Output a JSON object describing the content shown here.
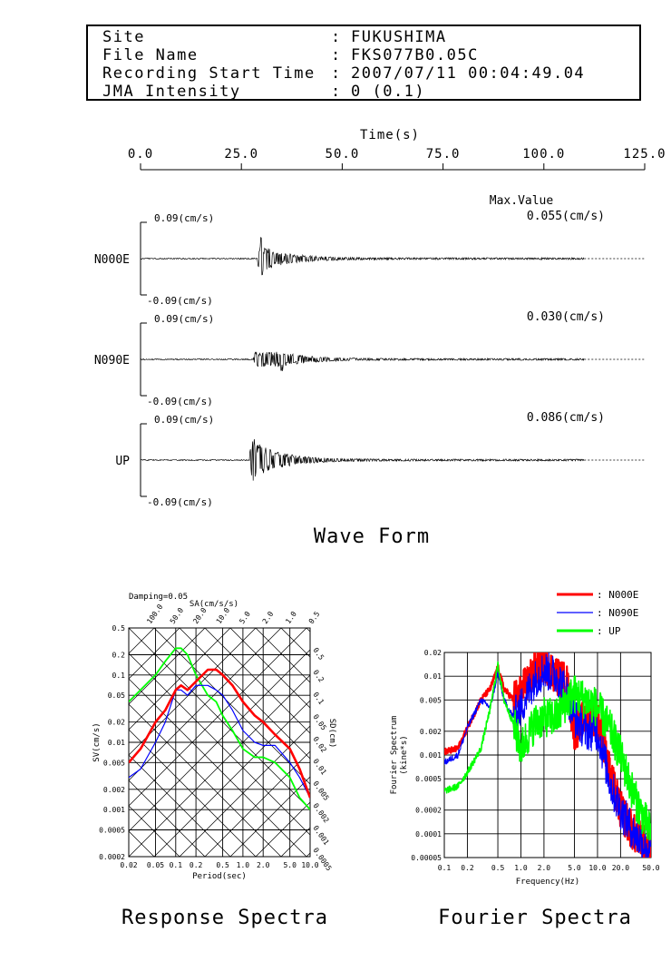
{
  "header": {
    "rows": [
      {
        "label": "Site",
        "value": "FUKUSHIMA"
      },
      {
        "label": "File Name",
        "value": "FKS077B0.05C"
      },
      {
        "label": "Recording Start Time",
        "value": "2007/07/11 00:04:49.04"
      },
      {
        "label": "JMA Intensity",
        "value": "0 (0.1)"
      }
    ],
    "separator": ":"
  },
  "waveform": {
    "title": "Wave Form",
    "time_axis_label": "Time(s)",
    "time_ticks": [
      "0.0",
      "25.0",
      "50.0",
      "75.0",
      "100.0",
      "125.0"
    ],
    "max_value_label": "Max.Value",
    "channels": [
      {
        "name": "N000E",
        "max": "0.055(cm/s)",
        "top_label": "0.09(cm/s)",
        "bottom_label": "-0.09(cm/s)"
      },
      {
        "name": "N090E",
        "max": "0.030(cm/s)",
        "top_label": "0.09(cm/s)",
        "bottom_label": "-0.09(cm/s)"
      },
      {
        "name": "UP",
        "max": "0.086(cm/s)",
        "top_label": "0.09(cm/s)",
        "bottom_label": "-0.09(cm/s)"
      }
    ]
  },
  "response": {
    "title": "Response Spectra",
    "damping": "Damping=0.05",
    "sa_label": "SA(cm/s/s)",
    "sd_label": "SD(cm)",
    "sv_label": "SV(cm/s)",
    "xlabel": "Period(sec)",
    "x_ticks": [
      "0.02",
      "0.05",
      "0.1",
      "0.2",
      "0.5",
      "1.0",
      "2.0",
      "5.0",
      "10.0"
    ],
    "y_ticks": [
      "0.5",
      "0.2",
      "0.1",
      "0.05",
      "0.02",
      "0.01",
      "0.005",
      "0.002",
      "0.001",
      "0.0005",
      "0.0002"
    ],
    "sa_ticks": [
      "100.0",
      "50.0",
      "20.0",
      "10.0",
      "5.0",
      "2.0",
      "1.0",
      "0.5"
    ],
    "sd_ticks": [
      "0.5",
      "0.2",
      "0.1",
      "0.05",
      "0.02",
      "0.01",
      "0.005",
      "0.002",
      "0.001",
      "0.0005"
    ]
  },
  "fourier": {
    "title": "Fourier Spectra",
    "ylabel": "Fourier Spectrum",
    "yunit": "(kine*s)",
    "xlabel": "Frequency(Hz)",
    "x_ticks": [
      "0.1",
      "0.2",
      "0.5",
      "1.0",
      "2.0",
      "5.0",
      "10.0",
      "20.0",
      "50.0"
    ],
    "y_ticks": [
      "0.02",
      "0.01",
      "0.005",
      "0.002",
      "0.001",
      "0.0005",
      "0.0002",
      "0.0001",
      "0.00005"
    ]
  },
  "legend": [
    {
      "name": "N000E",
      "color": "#ff0000"
    },
    {
      "name": "N090E",
      "color": "#0000ff"
    },
    {
      "name": "UP",
      "color": "#00ff00"
    }
  ],
  "chart_data": [
    {
      "type": "line",
      "title": "Wave Form",
      "xlabel": "Time(s)",
      "xlim": [
        0,
        125
      ],
      "ylim": [
        -0.09,
        0.09
      ],
      "series": [
        {
          "name": "N000E",
          "max_abs": 0.055,
          "onset_s": 29,
          "peak_time_s": 30
        },
        {
          "name": "N090E",
          "max_abs": 0.03,
          "onset_s": 28,
          "peak_time_s": 35
        },
        {
          "name": "UP",
          "max_abs": 0.086,
          "onset_s": 27,
          "peak_time_s": 28
        }
      ],
      "record_length_s": 110
    },
    {
      "type": "line",
      "title": "Response Spectra",
      "xlabel": "Period(sec)",
      "ylabel": "SV(cm/s)",
      "log_x": true,
      "log_y": true,
      "xlim": [
        0.02,
        10.0
      ],
      "ylim": [
        0.0002,
        0.5
      ],
      "x": [
        0.02,
        0.03,
        0.05,
        0.07,
        0.1,
        0.12,
        0.15,
        0.2,
        0.3,
        0.4,
        0.5,
        0.7,
        1.0,
        1.5,
        2.0,
        3.0,
        5.0,
        7.0,
        10.0
      ],
      "series": [
        {
          "name": "N000E",
          "color": "#ff0000",
          "values": [
            0.005,
            0.008,
            0.02,
            0.03,
            0.06,
            0.07,
            0.06,
            0.08,
            0.12,
            0.12,
            0.1,
            0.07,
            0.04,
            0.025,
            0.02,
            0.013,
            0.008,
            0.004,
            0.0015
          ]
        },
        {
          "name": "N090E",
          "color": "#0000ff",
          "values": [
            0.003,
            0.004,
            0.01,
            0.02,
            0.06,
            0.06,
            0.05,
            0.07,
            0.07,
            0.06,
            0.05,
            0.03,
            0.015,
            0.01,
            0.009,
            0.009,
            0.005,
            0.003,
            0.0015
          ]
        },
        {
          "name": "UP",
          "color": "#00ff00",
          "values": [
            0.04,
            0.06,
            0.1,
            0.16,
            0.25,
            0.25,
            0.2,
            0.1,
            0.05,
            0.04,
            0.025,
            0.015,
            0.008,
            0.006,
            0.006,
            0.005,
            0.003,
            0.0015,
            0.001
          ]
        }
      ]
    },
    {
      "type": "line",
      "title": "Fourier Spectra",
      "xlabel": "Frequency(Hz)",
      "ylabel": "Fourier Spectrum (kine*s)",
      "log_x": true,
      "log_y": true,
      "xlim": [
        0.1,
        50.0
      ],
      "ylim": [
        5e-05,
        0.02
      ],
      "x": [
        0.1,
        0.15,
        0.2,
        0.3,
        0.4,
        0.5,
        0.6,
        0.8,
        1.0,
        1.5,
        2.0,
        3.0,
        4.0,
        5.0,
        7.0,
        10.0,
        15.0,
        20.0,
        30.0,
        50.0
      ],
      "series": [
        {
          "name": "N000E",
          "color": "#ff0000",
          "values": [
            0.0011,
            0.0012,
            0.0022,
            0.005,
            0.007,
            0.013,
            0.007,
            0.005,
            0.006,
            0.012,
            0.015,
            0.01,
            0.008,
            0.002,
            0.003,
            0.003,
            0.0005,
            0.0002,
            0.0001,
            6e-05
          ]
        },
        {
          "name": "N090E",
          "color": "#0000ff",
          "values": [
            0.0008,
            0.001,
            0.0022,
            0.005,
            0.004,
            0.011,
            0.005,
            0.003,
            0.004,
            0.009,
            0.012,
            0.01,
            0.006,
            0.003,
            0.002,
            0.002,
            0.0004,
            0.0002,
            0.0001,
            6e-05
          ]
        },
        {
          "name": "UP",
          "color": "#00ff00",
          "values": [
            0.00035,
            0.0004,
            0.0006,
            0.0012,
            0.004,
            0.014,
            0.005,
            0.0025,
            0.0012,
            0.0025,
            0.003,
            0.003,
            0.005,
            0.006,
            0.005,
            0.004,
            0.002,
            0.001,
            0.0003,
            0.0001
          ]
        }
      ]
    }
  ]
}
